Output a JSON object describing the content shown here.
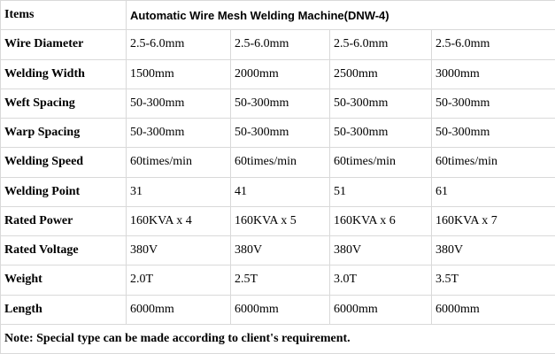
{
  "table": {
    "header": [
      "Items",
      "Automatic Wire Mesh Welding Machine(DNW-4)"
    ],
    "rows": [
      [
        "Wire Diameter",
        "2.5-6.0mm",
        "2.5-6.0mm",
        "2.5-6.0mm",
        "2.5-6.0mm"
      ],
      [
        "Welding Width",
        "1500mm",
        "2000mm",
        "2500mm",
        "3000mm"
      ],
      [
        "Weft Spacing",
        "50-300mm",
        "50-300mm",
        "50-300mm",
        "50-300mm"
      ],
      [
        "Warp Spacing",
        "50-300mm",
        "50-300mm",
        "50-300mm",
        "50-300mm"
      ],
      [
        "Welding Speed",
        "60times/min",
        "60times/min",
        "60times/min",
        "60times/min"
      ],
      [
        "Welding Point",
        "31",
        "41",
        "51",
        "61"
      ],
      [
        "Rated Power",
        "160KVA x 4",
        "160KVA x 5",
        "160KVA x 6",
        "160KVA x 7"
      ],
      [
        "Rated Voltage",
        "380V",
        "380V",
        "380V",
        "380V"
      ],
      [
        "Weight",
        "2.0T",
        "2.5T",
        "3.0T",
        "3.5T"
      ],
      [
        "Length",
        "6000mm",
        "6000mm",
        "6000mm",
        "6000mm"
      ]
    ],
    "note": "Note: Special type can be made according to client's requirement."
  }
}
